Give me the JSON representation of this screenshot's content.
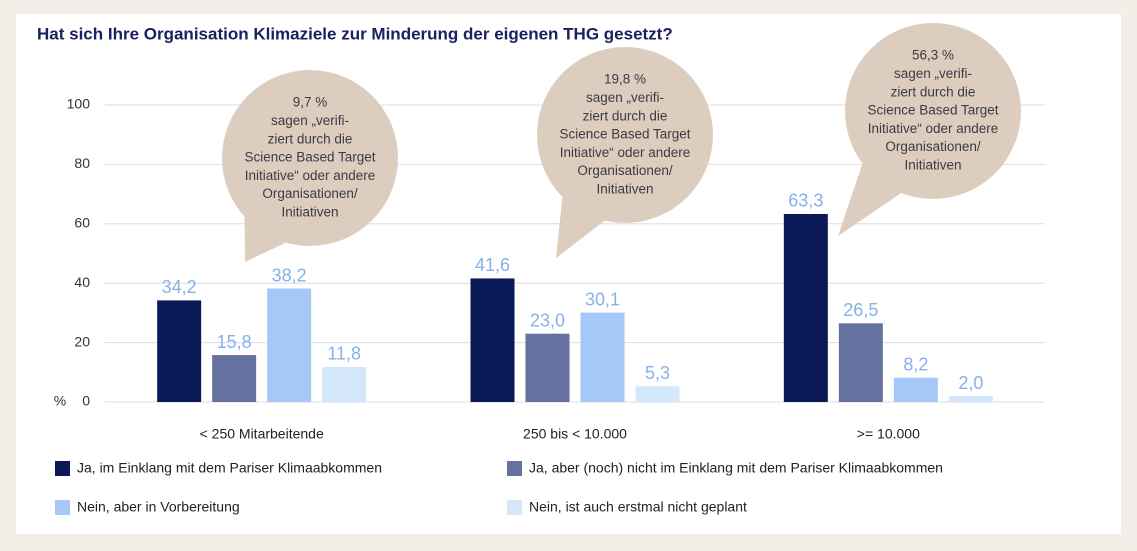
{
  "chart_data": {
    "type": "bar",
    "title": "Hat sich Ihre Organisation Klimaziele zur Minderung der eigenen THG gesetzt?",
    "y_label": "%",
    "categories": [
      "< 250 Mitarbeitende",
      "250 bis < 10.000",
      ">= 10.000"
    ],
    "series": [
      {
        "name": "Ja, im Einklang mit dem Pariser Klimaabkommen",
        "color": "#0c1957",
        "values": [
          34.2,
          41.6,
          63.3
        ],
        "value_labels": [
          "34,2",
          "41,6",
          "63,3"
        ]
      },
      {
        "name": "Ja, aber (noch) nicht im Einklang mit dem Pariser Klimaabkommen",
        "color": "#65729f",
        "values": [
          15.8,
          23.0,
          26.5
        ],
        "value_labels": [
          "15,8",
          "23,0",
          "26,5"
        ]
      },
      {
        "name": "Nein, aber in Vorbereitung",
        "color": "#a6c8f6",
        "values": [
          38.2,
          30.1,
          8.2
        ],
        "value_labels": [
          "38,2",
          "30,1",
          "8,2"
        ]
      },
      {
        "name": "Nein, ist auch erstmal nicht geplant",
        "color": "#d5e7fb",
        "values": [
          11.8,
          5.3,
          2.0
        ],
        "value_labels": [
          "11,8",
          "5,3",
          "2,0"
        ]
      }
    ],
    "ylim": [
      0,
      100
    ],
    "yticks": [
      0,
      20,
      40,
      60,
      80,
      100
    ],
    "grid": true,
    "annotations": [
      {
        "lines": [
          "9,7 %",
          "sagen „verifi-",
          "ziert durch die",
          "Science Based Target",
          "Initiative“ oder andere",
          "Organisationen/",
          "Initiativen"
        ]
      },
      {
        "lines": [
          "19,8 %",
          "sagen „verifi-",
          "ziert durch die",
          "Science Based Target",
          "Initiative“ oder andere",
          "Organisationen/",
          "Initiativen"
        ]
      },
      {
        "lines": [
          "56,3 %",
          "sagen „verifi-",
          "ziert durch die",
          "Science Based Target",
          "Initiative“ oder andere",
          "Organisationen/",
          "Initiativen"
        ]
      }
    ]
  }
}
